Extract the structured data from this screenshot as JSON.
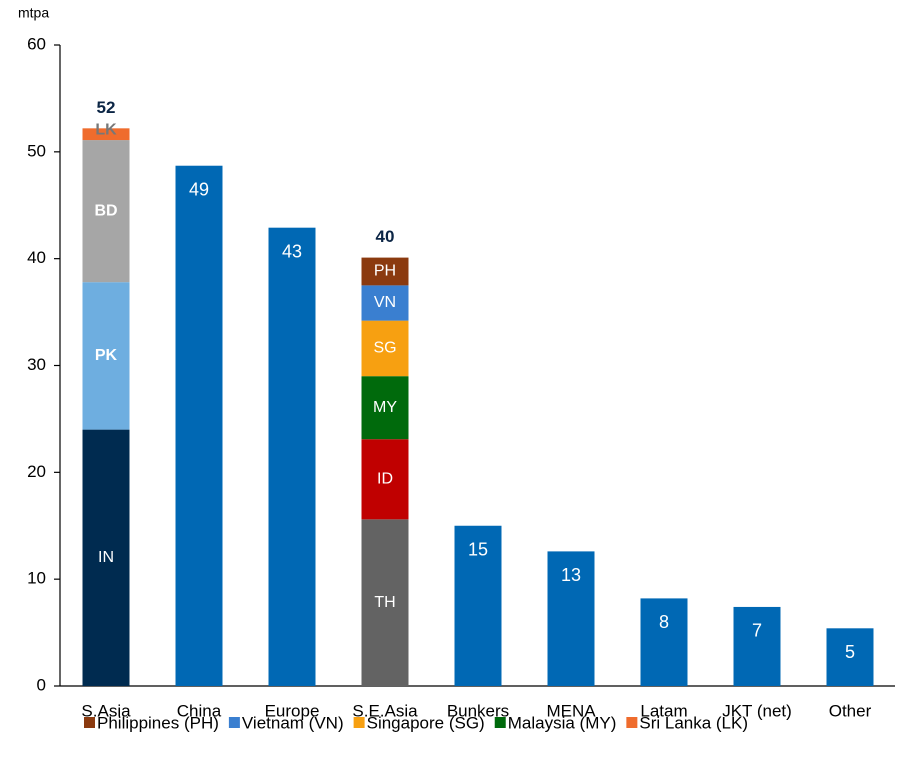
{
  "chart_data": {
    "type": "stacked_bar",
    "y_label": "mtpa",
    "categories": [
      "S.Asia",
      "China",
      "Europe",
      "S.E.Asia",
      "Bunkers",
      "MENA",
      "Latam",
      "JKT (net)",
      "Other"
    ],
    "ylim": [
      0,
      60
    ],
    "yticks": [
      0,
      10,
      20,
      30,
      40,
      50,
      60
    ],
    "totals": [
      52,
      null,
      null,
      40,
      null,
      null,
      null,
      null,
      null
    ],
    "series": [
      {
        "label": "IN",
        "color": "#002b50",
        "bold": false,
        "values": [
          24,
          null,
          null,
          null,
          null,
          null,
          null,
          null,
          null
        ]
      },
      {
        "label": "PK",
        "color": "#6eaee0",
        "bold": true,
        "values": [
          13.8,
          null,
          null,
          null,
          null,
          null,
          null,
          null,
          null
        ]
      },
      {
        "label": "BD",
        "color": "#a6a6a6",
        "bold": true,
        "values": [
          13.3,
          null,
          null,
          null,
          null,
          null,
          null,
          null,
          null
        ]
      },
      {
        "label": "LK",
        "name": "Sri Lanka (LK)",
        "color": "#ef6c2d",
        "bold": true,
        "values": [
          1.1,
          null,
          null,
          null,
          null,
          null,
          null,
          null,
          null
        ]
      },
      {
        "label": "TH",
        "color": "#636363",
        "bold": false,
        "values": [
          null,
          null,
          null,
          15.6,
          null,
          null,
          null,
          null,
          null
        ]
      },
      {
        "label": "ID",
        "color": "#c00000",
        "bold": false,
        "values": [
          null,
          null,
          null,
          7.5,
          null,
          null,
          null,
          null,
          null
        ]
      },
      {
        "label": "MY",
        "name": "Malaysia (MY)",
        "color": "#006a0c",
        "bold": false,
        "values": [
          null,
          null,
          null,
          5.9,
          null,
          null,
          null,
          null,
          null
        ]
      },
      {
        "label": "SG",
        "name": "Singapore (SG)",
        "color": "#f7a011",
        "bold": false,
        "values": [
          null,
          null,
          null,
          5.2,
          null,
          null,
          null,
          null,
          null
        ]
      },
      {
        "label": "VN",
        "name": "Vietnam (VN)",
        "color": "#3a7fd0",
        "bold": false,
        "values": [
          null,
          null,
          null,
          3.3,
          null,
          null,
          null,
          null,
          null
        ]
      },
      {
        "label": "PH",
        "name": "Philippines (PH)",
        "color": "#8b3a0f",
        "bold": false,
        "values": [
          null,
          null,
          null,
          2.6,
          null,
          null,
          null,
          null,
          null
        ]
      },
      {
        "color": "#0068b4",
        "values": [
          null,
          48.7,
          42.9,
          null,
          15.0,
          12.6,
          8.2,
          7.4,
          5.4
        ],
        "value_labels": [
          null,
          "49",
          "43",
          null,
          "15",
          "13",
          "8",
          "7",
          "5"
        ]
      }
    ],
    "legend_order": [
      9,
      8,
      7,
      6,
      3
    ]
  }
}
